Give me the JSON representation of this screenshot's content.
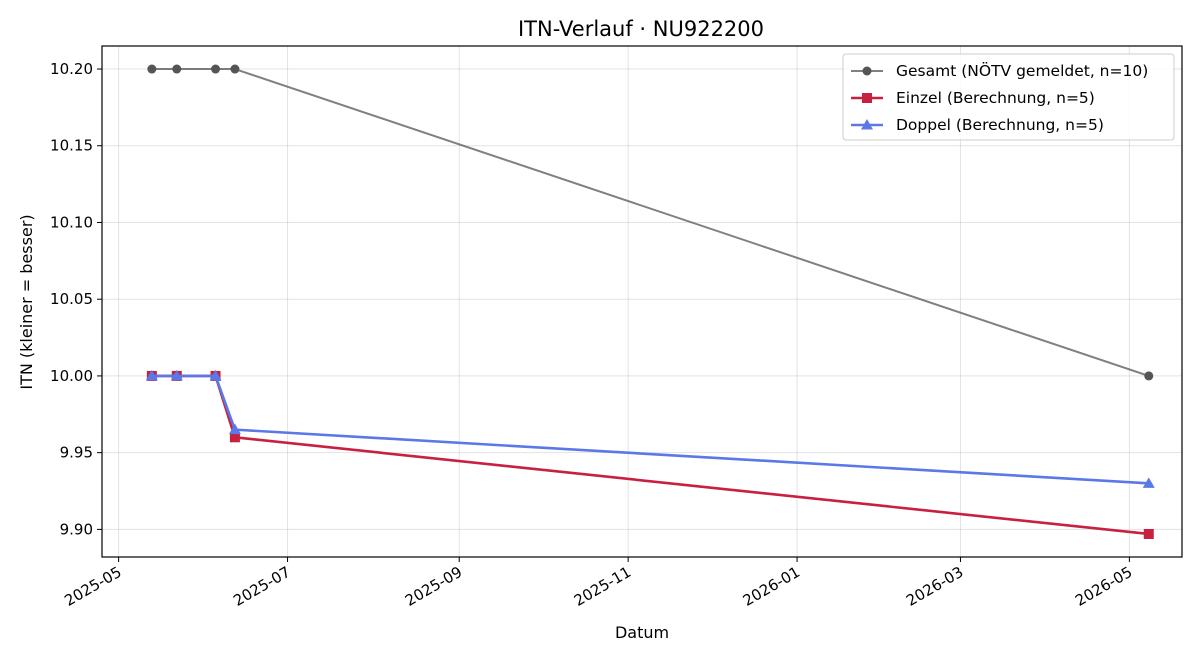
{
  "chart_data": {
    "type": "line",
    "title": "ITN-Verlauf · NU922200",
    "xlabel": "Datum",
    "ylabel": "ITN  (kleiner = besser)",
    "x_ticks": [
      "2025-05",
      "2025-07",
      "2025-09",
      "2025-11",
      "2026-01",
      "2026-03",
      "2026-05"
    ],
    "y_ticks": [
      "9.90",
      "9.95",
      "10.00",
      "10.05",
      "10.10",
      "10.15",
      "10.20"
    ],
    "xlim": [
      "2025-04-25",
      "2026-05-20"
    ],
    "ylim": [
      9.882,
      10.215
    ],
    "grid": true,
    "legend_position": "top-right",
    "series": [
      {
        "name": "Gesamt (NÖTV gemeldet, n=10)",
        "color": "#555555",
        "marker": "circle",
        "points": [
          {
            "x": "2025-05-13",
            "y": 10.2
          },
          {
            "x": "2025-05-22",
            "y": 10.2
          },
          {
            "x": "2025-06-05",
            "y": 10.2
          },
          {
            "x": "2025-06-12",
            "y": 10.2
          },
          {
            "x": "2026-05-08",
            "y": 10.0
          }
        ]
      },
      {
        "name": "Einzel (Berechnung, n=5)",
        "color": "#c8203f",
        "marker": "square",
        "points": [
          {
            "x": "2025-05-13",
            "y": 10.0
          },
          {
            "x": "2025-05-22",
            "y": 10.0
          },
          {
            "x": "2025-06-05",
            "y": 10.0
          },
          {
            "x": "2025-06-12",
            "y": 9.96
          },
          {
            "x": "2026-05-08",
            "y": 9.897
          }
        ]
      },
      {
        "name": "Doppel (Berechnung, n=5)",
        "color": "#5b78e8",
        "marker": "triangle",
        "points": [
          {
            "x": "2025-05-13",
            "y": 10.0
          },
          {
            "x": "2025-05-22",
            "y": 10.0
          },
          {
            "x": "2025-06-05",
            "y": 10.0
          },
          {
            "x": "2025-06-12",
            "y": 9.965
          },
          {
            "x": "2026-05-08",
            "y": 9.93
          }
        ]
      }
    ]
  }
}
